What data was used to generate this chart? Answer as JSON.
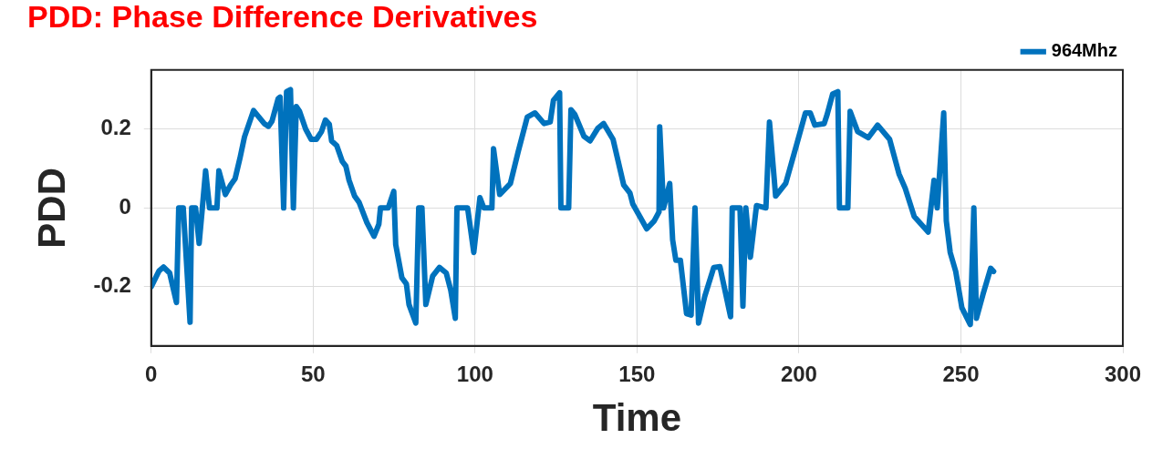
{
  "chart_data": {
    "type": "line",
    "title": "PDD: Phase Difference Derivatives",
    "xlabel": "Time",
    "ylabel": "PDD",
    "xlim": [
      0,
      300
    ],
    "xticks": [
      0,
      50,
      100,
      150,
      200,
      250,
      300
    ],
    "ylim": [
      -0.35,
      0.35
    ],
    "yticks": [
      -0.2,
      0,
      0.2
    ],
    "grid": true,
    "legend": "top right",
    "marker": "none",
    "line_style": "solid",
    "series": [
      {
        "name": "964Mhz",
        "color": "#0072bd",
        "x": [
          0,
          2.4,
          3.8,
          5.7,
          7.8,
          8.5,
          9.9,
          12,
          12.5,
          13.7,
          14.8,
          15.8,
          16.8,
          18,
          20.3,
          20.9,
          22.9,
          24.5,
          25.9,
          27.4,
          28.8,
          31.6,
          34.9,
          36.2,
          37.3,
          39.2,
          39.8,
          40.9,
          41.8,
          43,
          43.9,
          44.8,
          45.8,
          47.7,
          49.4,
          51,
          52.6,
          53.8,
          55,
          55.7,
          57.3,
          59,
          60.1,
          61.1,
          62.8,
          64.2,
          66.6,
          68.8,
          70.3,
          70.8,
          73.2,
          74.9,
          75.5,
          77.4,
          78.8,
          79.6,
          81.7,
          82.6,
          83.6,
          84.8,
          86.9,
          89,
          91.1,
          92.5,
          93.9,
          94.4,
          97.7,
          99.6,
          101.5,
          102.7,
          105.2,
          105.7,
          107.6,
          110.9,
          113.3,
          116.1,
          118.5,
          121.3,
          123.2,
          124.2,
          126.1,
          126.5,
          128.9,
          129.6,
          130.8,
          133.6,
          135.5,
          137.9,
          139.7,
          142.6,
          145.9,
          147.8,
          148.7,
          153,
          155.3,
          156.8,
          157,
          158.2,
          160.1,
          161,
          162,
          163.4,
          165.3,
          166.7,
          167.9,
          169,
          170.9,
          173.7,
          175.6,
          178.9,
          179.4,
          181.8,
          182.7,
          183.6,
          185,
          186.9,
          189.8,
          190.9,
          192.8,
          195.9,
          199.2,
          202,
          203.5,
          204.9,
          207.8,
          208.7,
          210.4,
          212,
          212.5,
          215.1,
          215.8,
          218.1,
          221.4,
          224.3,
          228,
          230.9,
          232.8,
          235.6,
          239.9,
          241.7,
          242.7,
          244.7,
          245.5,
          246.7,
          248.4,
          250.3,
          252.9,
          254,
          254.8,
          256.9,
          259.2,
          260.1
        ],
        "values": [
          -0.2,
          -0.16,
          -0.15,
          -0.165,
          -0.24,
          0,
          0,
          -0.29,
          0,
          0,
          -0.09,
          0,
          0.094,
          0,
          0,
          0.094,
          0.034,
          0.058,
          0.074,
          0.126,
          0.18,
          0.247,
          0.214,
          0.207,
          0.22,
          0.277,
          0.281,
          0,
          0.295,
          0.3,
          0,
          0.257,
          0.245,
          0.2,
          0.174,
          0.174,
          0.194,
          0.223,
          0.212,
          0.17,
          0.158,
          0.118,
          0.106,
          0.07,
          0.03,
          0.014,
          -0.037,
          -0.072,
          -0.041,
          0,
          0,
          0.042,
          -0.093,
          -0.177,
          -0.193,
          -0.245,
          -0.292,
          0,
          0,
          -0.245,
          -0.173,
          -0.151,
          -0.165,
          -0.209,
          -0.28,
          0,
          0,
          -0.113,
          0.026,
          0,
          0,
          0.15,
          0.034,
          0.062,
          0.142,
          0.23,
          0.241,
          0.214,
          0.218,
          0.273,
          0.292,
          0,
          0,
          0.249,
          0.237,
          0.182,
          0.17,
          0.202,
          0.214,
          0.174,
          0.058,
          0.038,
          0.01,
          -0.053,
          -0.033,
          -0.01,
          0.206,
          0,
          0.062,
          -0.081,
          -0.133,
          -0.133,
          -0.268,
          -0.272,
          0,
          -0.292,
          -0.225,
          -0.151,
          -0.149,
          -0.276,
          0,
          0,
          -0.249,
          0,
          -0.125,
          0.006,
          0,
          0.218,
          0.03,
          0.062,
          0.158,
          0.241,
          0.241,
          0.21,
          0.214,
          0.237,
          0.289,
          0.295,
          0,
          0,
          0.245,
          0.194,
          0.178,
          0.21,
          0.174,
          0.086,
          0.05,
          -0.022,
          -0.061,
          0.07,
          0,
          0.241,
          -0.033,
          -0.113,
          -0.161,
          -0.253,
          -0.296,
          0,
          -0.28,
          -0.217,
          -0.153,
          -0.161
        ]
      }
    ]
  }
}
